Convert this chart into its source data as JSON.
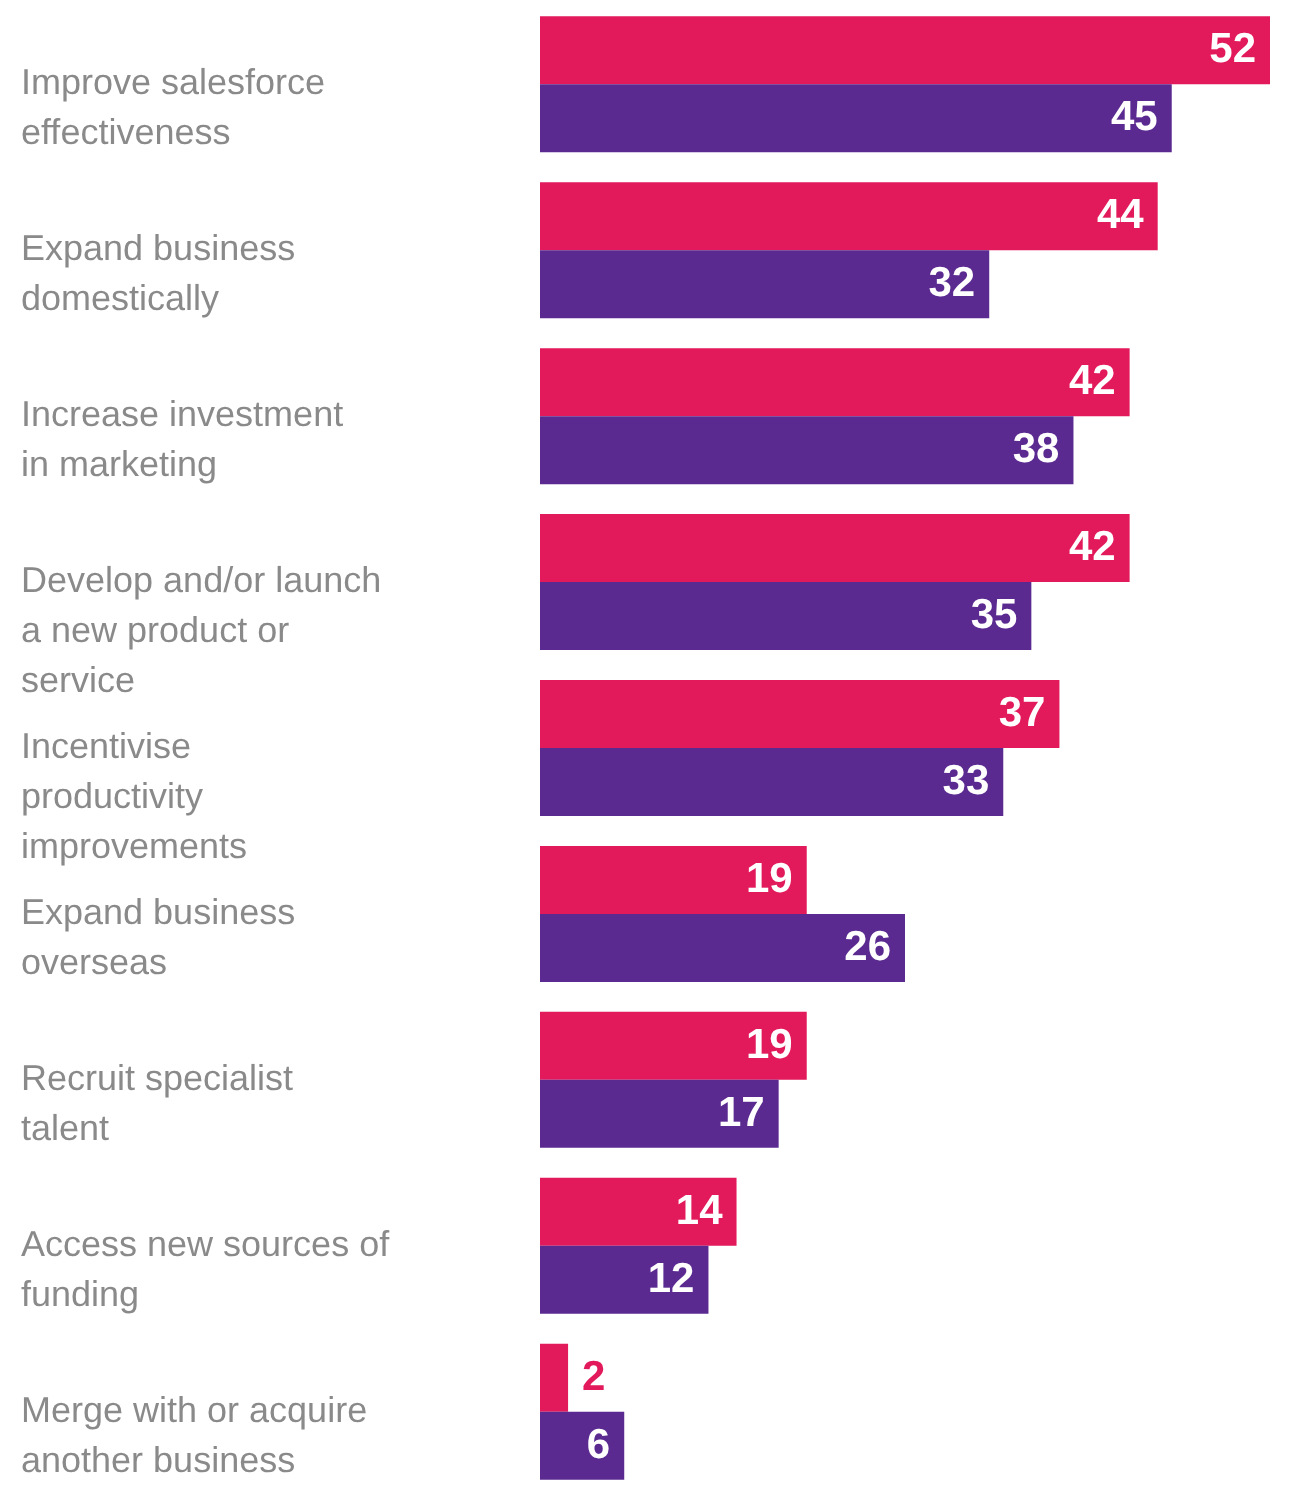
{
  "chart_data": {
    "type": "bar",
    "orientation": "horizontal",
    "categories": [
      "Improve salesforce effectiveness",
      "Expand business domestically",
      "Increase investment in marketing",
      "Develop and/or launch a new product or service",
      "Incentivise productivity improvements",
      "Expand business overseas",
      "Recruit specialist talent",
      "Access new sources of funding",
      "Merge with or acquire another business"
    ],
    "series": [
      {
        "color": "#e2195b",
        "values": [
          52,
          44,
          42,
          42,
          37,
          19,
          19,
          14,
          2
        ]
      },
      {
        "color": "#5b2a91",
        "values": [
          45,
          32,
          38,
          35,
          33,
          26,
          17,
          12,
          6
        ]
      }
    ],
    "data_labels": true,
    "tick_labels": "y",
    "legend": false
  }
}
